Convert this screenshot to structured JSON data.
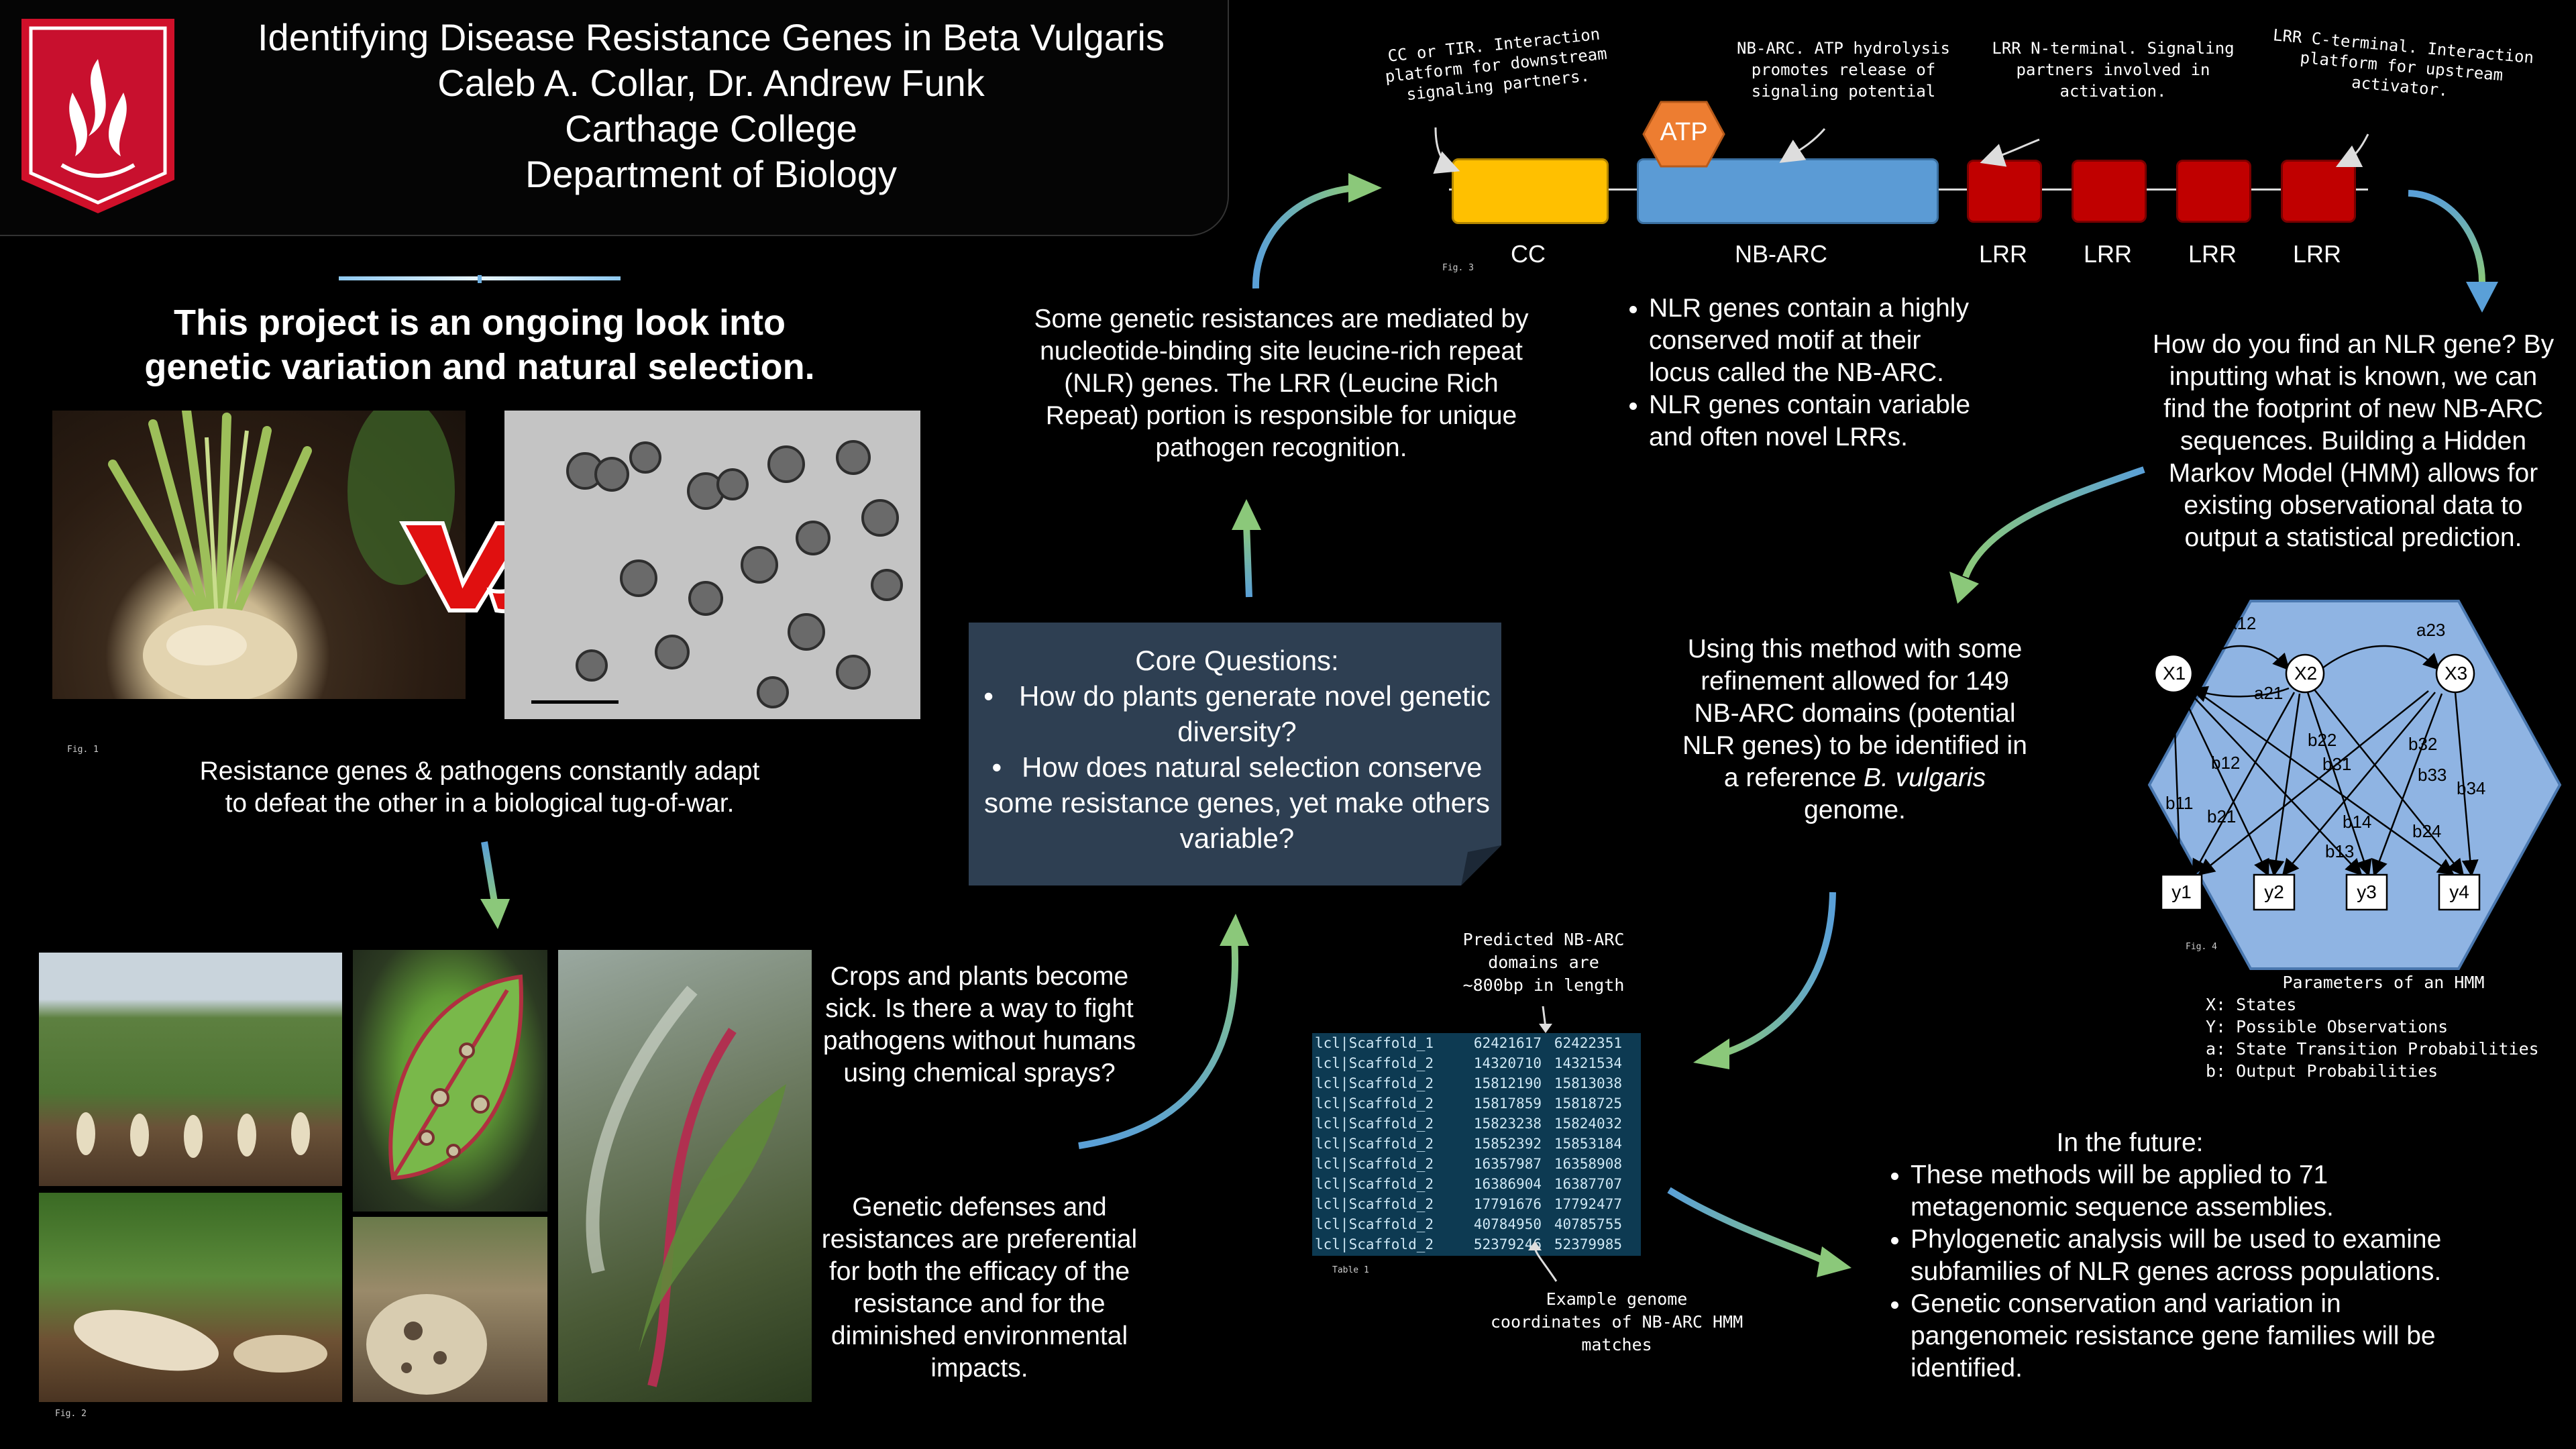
{
  "header": {
    "title": "Identifying Disease Resistance Genes in Beta Vulgaris",
    "authors": "Caleb A. Collar, Dr. Andrew Funk",
    "institution": "Carthage College",
    "department": "Department of Biology"
  },
  "intro": {
    "heading_line1": "This project is an ongoing look into",
    "heading_line2": "genetic variation and natural selection.",
    "vs_text": "VS",
    "fig1_label": "Fig. 1",
    "caption_line1": "Resistance genes & pathogens constantly adapt",
    "caption_line2": "to defeat the other in a biological tug-of-war.",
    "fig2_label": "Fig. 2"
  },
  "crops": {
    "text": "Crops and plants become sick. Is there a way to fight pathogens without humans using chemical sprays?"
  },
  "defenses": {
    "text": "Genetic defenses and resistances are preferential for both the efficacy of the resistance and for the diminished environmental impacts."
  },
  "core_questions": {
    "title": "Core Questions:",
    "items": [
      "How do plants generate novel genetic diversity?",
      "How does natural selection conserve some resistance genes, yet make others variable?"
    ]
  },
  "nlr_intro": {
    "text": "Some genetic resistances are mediated by nucleotide-binding site leucine-rich repeat (NLR) genes. The LRR (Leucine Rich Repeat) portion is responsible for unique pathogen recognition."
  },
  "domain_diagram": {
    "annotations": {
      "cc": "CC or TIR. Interaction platform for downstream signaling partners.",
      "nbarc": "NB-ARC. ATP hydrolysis promotes release of signaling potential",
      "lrr_n": "LRR N-terminal. Signaling partners involved in activation.",
      "lrr_c": "LRR C-terminal. Interaction platform for upstream activator."
    },
    "atp_label": "ATP",
    "labels": {
      "cc": "CC",
      "nbarc": "NB-ARC",
      "lrr": [
        "LRR",
        "LRR",
        "LRR",
        "LRR"
      ]
    },
    "fig_label": "Fig. 3",
    "colors": {
      "cc": "#ffc000",
      "nbarc": "#5b9bd5",
      "lrr": "#c00000",
      "atp": "#ed7d31"
    }
  },
  "nlr_facts": {
    "items": [
      "NLR genes contain a highly conserved motif at their locus called the NB-ARC.",
      "NLR genes contain variable and often novel LRRs."
    ]
  },
  "find_nlr": {
    "text": "How do you find an NLR gene? By inputting what is known, we can find the footprint of new NB-ARC sequences. Building a Hidden Markov Model (HMM) allows for existing observational data to output a statistical prediction."
  },
  "hmm": {
    "states": [
      "X1",
      "X2",
      "X3"
    ],
    "observations": [
      "y1",
      "y2",
      "y3",
      "y4"
    ],
    "transitions": [
      "a12",
      "a21",
      "a23"
    ],
    "outputs": [
      "b11",
      "b12",
      "b21",
      "b22",
      "b31",
      "b32",
      "b33",
      "b34",
      "b14",
      "b13",
      "b24"
    ],
    "fig_label": "Fig. 4",
    "params_title": "Parameters of an HMM",
    "params": [
      "X: States",
      "Y: Possible Observations",
      "a: State Transition Probabilities",
      "b: Output Probabilities"
    ]
  },
  "method": {
    "text_before": "Using this method with some refinement allowed for 149 NB-ARC domains (potential NLR genes) to be identified in a reference",
    "species": "B. vulgaris",
    "text_after": "genome."
  },
  "table": {
    "note": "Predicted NB-ARC domains are ~800bp in length",
    "rows": [
      [
        "lcl|Scaffold_1",
        "62421617",
        "62422351"
      ],
      [
        "lcl|Scaffold_2",
        "14320710",
        "14321534"
      ],
      [
        "lcl|Scaffold_2",
        "15812190",
        "15813038"
      ],
      [
        "lcl|Scaffold_2",
        "15817859",
        "15818725"
      ],
      [
        "lcl|Scaffold_2",
        "15823238",
        "15824032"
      ],
      [
        "lcl|Scaffold_2",
        "15852392",
        "15853184"
      ],
      [
        "lcl|Scaffold_2",
        "16357987",
        "16358908"
      ],
      [
        "lcl|Scaffold_2",
        "16386904",
        "16387707"
      ],
      [
        "lcl|Scaffold_2",
        "17791676",
        "17792477"
      ],
      [
        "lcl|Scaffold_2",
        "40784950",
        "40785755"
      ],
      [
        "lcl|Scaffold_2",
        "52379246",
        "52379985"
      ]
    ],
    "label": "Table 1",
    "caption": "Example genome coordinates of NB-ARC HMM matches"
  },
  "future": {
    "title": "In the future:",
    "items": [
      "These methods will be applied to 71 metagenomic sequence assemblies.",
      "Phylogenetic analysis will be used to examine subfamilies of NLR genes across populations.",
      "Genetic conservation and variation in pangenomeic resistance gene families will be identified."
    ]
  }
}
